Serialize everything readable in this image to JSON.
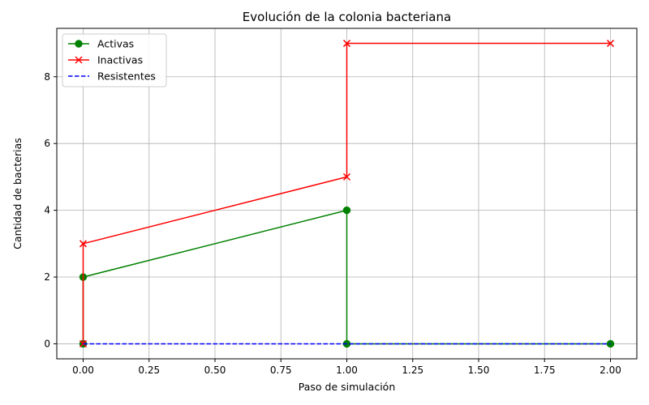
{
  "chart_data": {
    "type": "line",
    "title": "Evolución de la colonia bacteriana",
    "xlabel": "Paso de simulación",
    "ylabel": "Cantidad de bacterias",
    "xlim": [
      -0.1,
      2.1
    ],
    "ylim": [
      -0.45,
      9.45
    ],
    "xticks": [
      0.0,
      0.25,
      0.5,
      0.75,
      1.0,
      1.25,
      1.5,
      1.75,
      2.0
    ],
    "xtick_labels": [
      "0.00",
      "0.25",
      "0.50",
      "0.75",
      "1.00",
      "1.25",
      "1.50",
      "1.75",
      "2.00"
    ],
    "yticks": [
      0,
      2,
      4,
      6,
      8
    ],
    "ytick_labels": [
      "0",
      "2",
      "4",
      "6",
      "8"
    ],
    "grid": true,
    "legend_position": "top-left",
    "series": [
      {
        "name": "Activas",
        "color": "#008000",
        "marker": "circle",
        "linestyle": "solid",
        "x": [
          0,
          0,
          1,
          1,
          2
        ],
        "y": [
          0,
          2,
          4,
          0,
          0
        ]
      },
      {
        "name": "Inactivas",
        "color": "#ff0000",
        "marker": "x",
        "linestyle": "solid",
        "x": [
          0,
          0,
          1,
          1,
          2
        ],
        "y": [
          0,
          3,
          5,
          9,
          9
        ]
      },
      {
        "name": "Resistentes",
        "color": "#0000ff",
        "marker": "none",
        "linestyle": "dashed",
        "x": [
          0,
          0,
          1,
          1,
          2
        ],
        "y": [
          0,
          0,
          0,
          0,
          0
        ]
      }
    ]
  }
}
